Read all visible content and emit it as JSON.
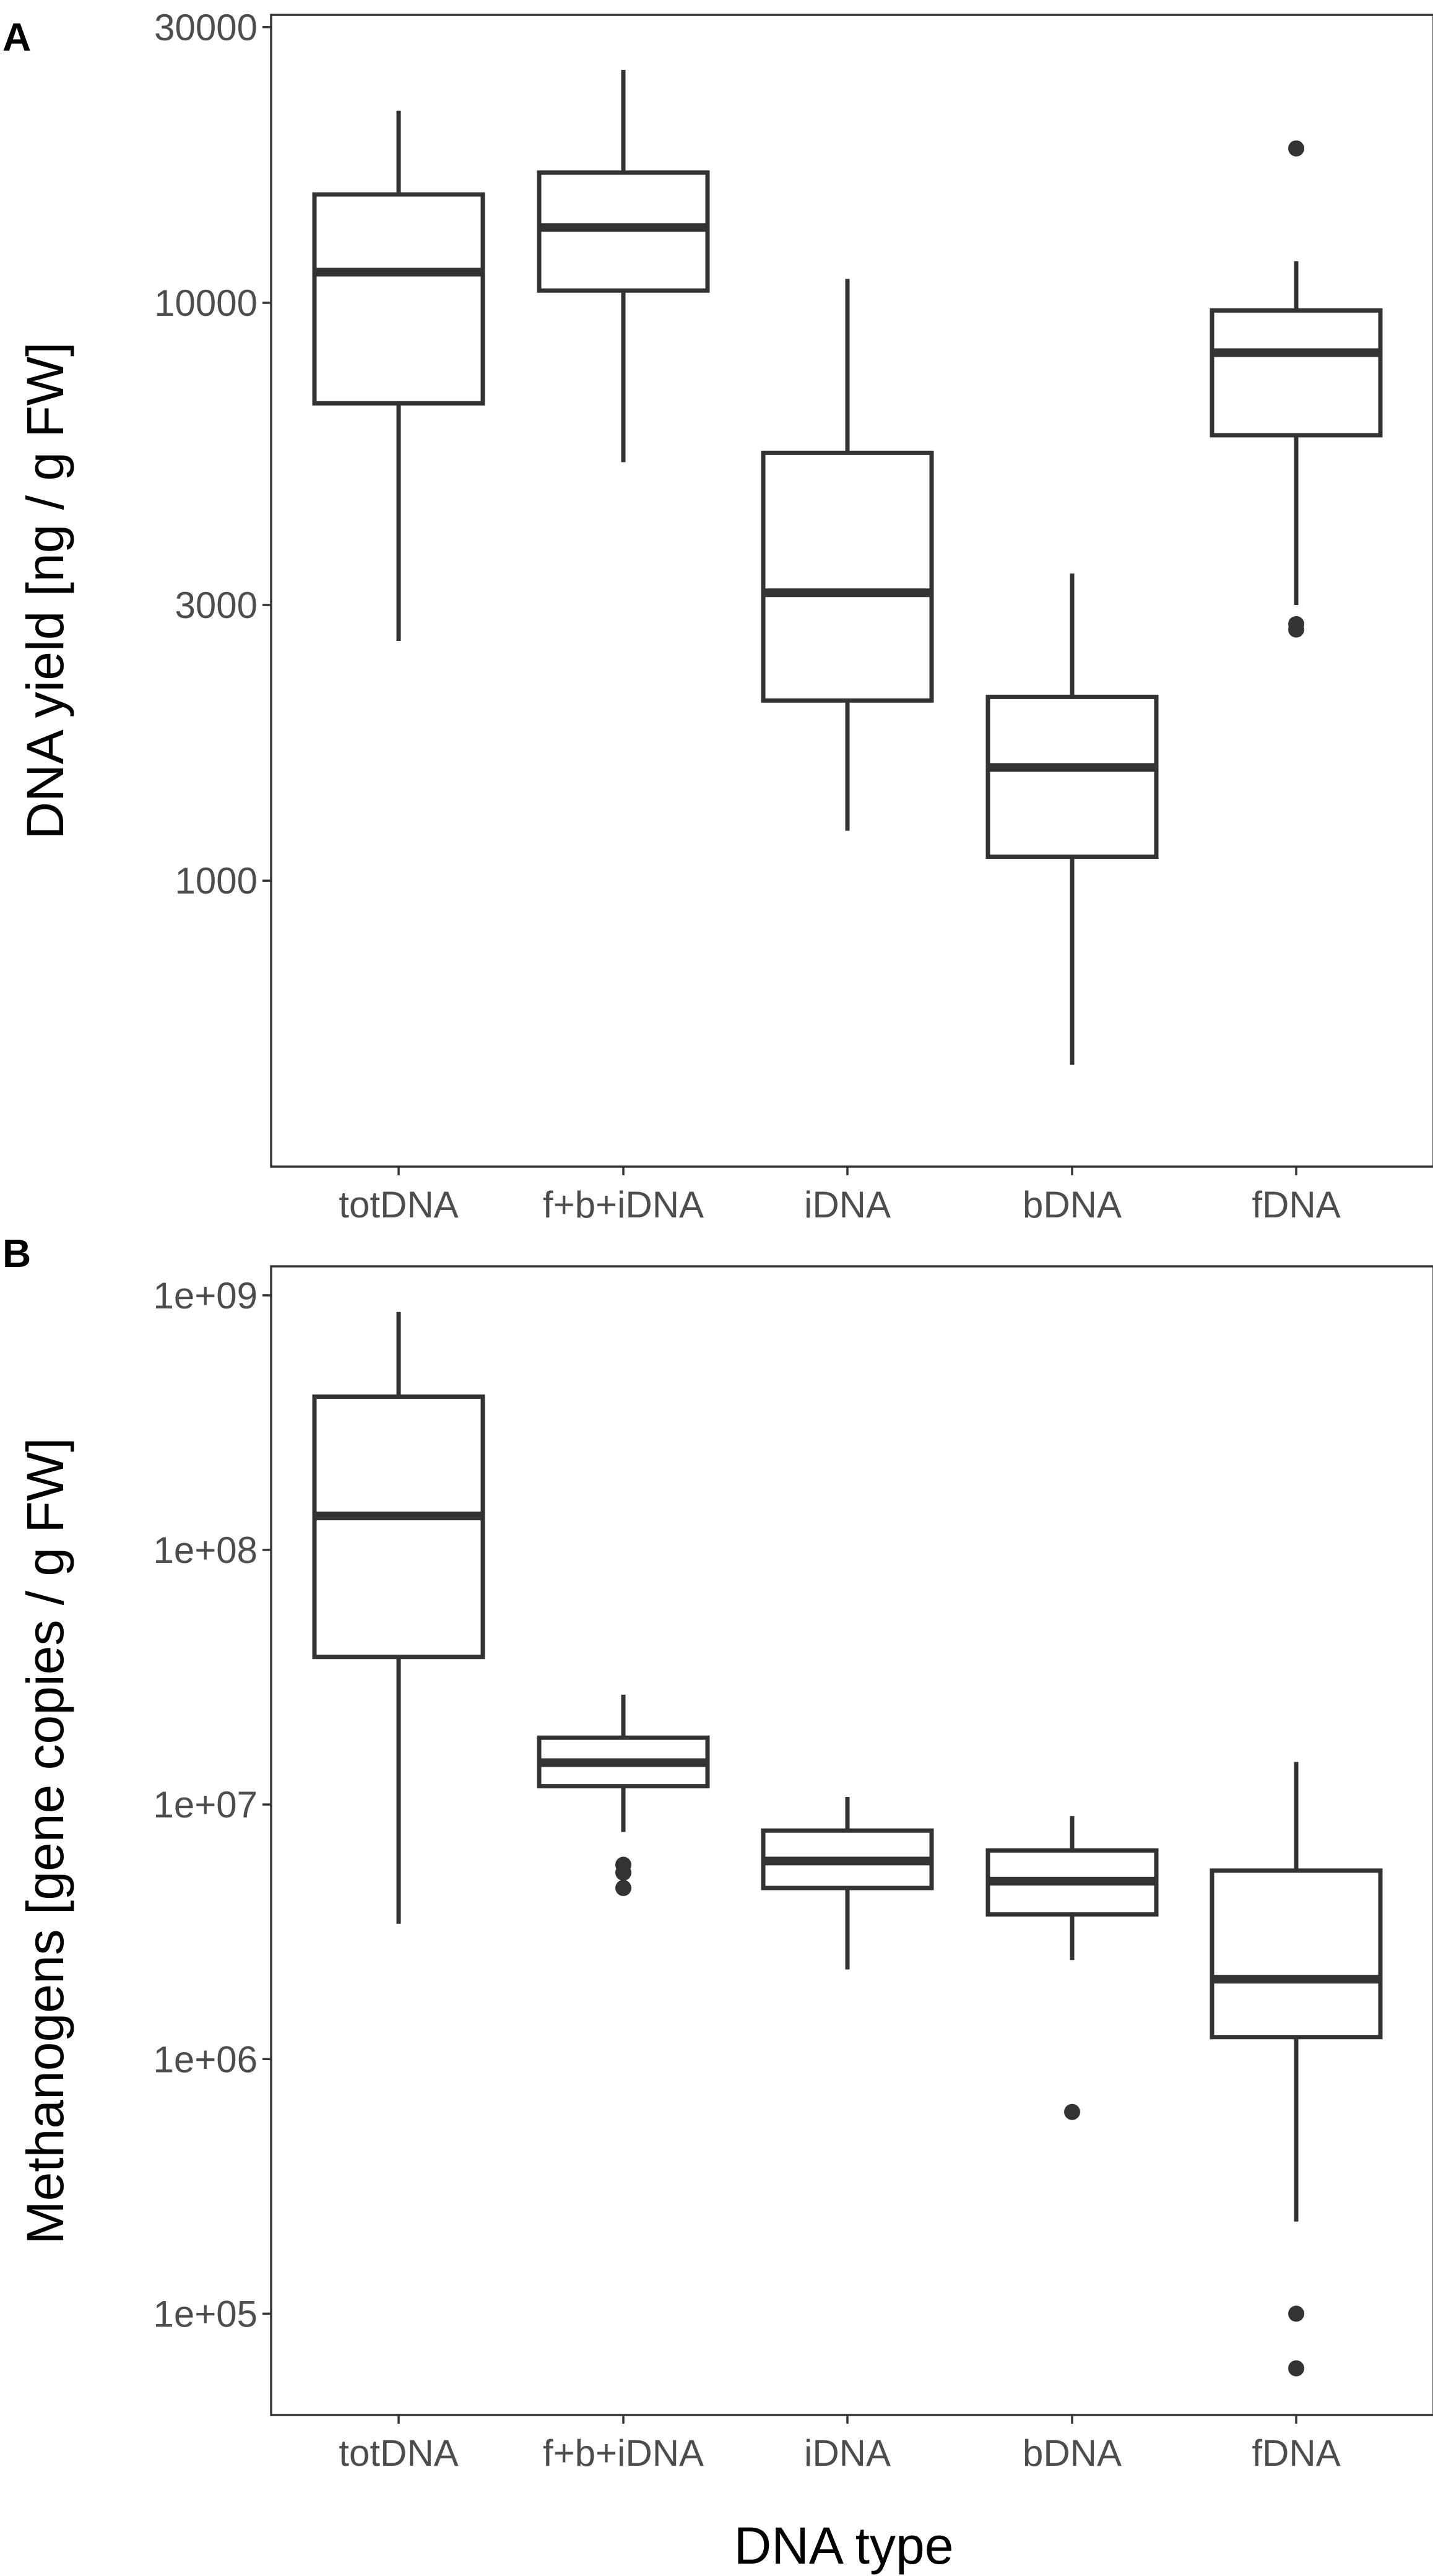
{
  "chart_data": [
    {
      "type": "boxplot",
      "panel": "A",
      "title": "",
      "xlabel": "",
      "ylabel": "DNA yield [ng / g FW]",
      "yscale": "log10",
      "ylim": [
        320,
        31500
      ],
      "yticks": [
        1000,
        3000,
        10000,
        30000
      ],
      "ytick_labels": [
        "1000",
        "3000",
        "10000",
        "30000"
      ],
      "categories": [
        "totDNA",
        "f+b+iDNA",
        "iDNA",
        "bDNA",
        "fDNA"
      ],
      "boxes": [
        {
          "category": "totDNA",
          "whisker_low": 2600,
          "q1": 6700,
          "median": 11300,
          "q3": 15400,
          "whisker_high": 21500,
          "outliers": []
        },
        {
          "category": "f+b+iDNA",
          "whisker_low": 5300,
          "q1": 10500,
          "median": 13500,
          "q3": 16800,
          "whisker_high": 25300,
          "outliers": []
        },
        {
          "category": "iDNA",
          "whisker_low": 1220,
          "q1": 2050,
          "median": 3150,
          "q3": 5500,
          "whisker_high": 11000,
          "outliers": []
        },
        {
          "category": "bDNA",
          "whisker_low": 480,
          "q1": 1100,
          "median": 1570,
          "q3": 2080,
          "whisker_high": 3400,
          "outliers": []
        },
        {
          "category": "fDNA",
          "whisker_low": 3000,
          "q1": 5900,
          "median": 8200,
          "q3": 9700,
          "whisker_high": 11800,
          "outliers": [
            2720,
            2780,
            18500
          ]
        }
      ]
    },
    {
      "type": "boxplot",
      "panel": "B",
      "title": "",
      "xlabel": "DNA type",
      "ylabel": "Methanogens [gene copies / g FW]",
      "yscale": "log10",
      "ylim": [
        40000,
        1300000000
      ],
      "yticks": [
        100000,
        1000000,
        10000000,
        100000000,
        1000000000
      ],
      "ytick_labels": [
        "1e+05",
        "1e+06",
        "1e+07",
        "1e+08",
        "1e+09"
      ],
      "categories": [
        "totDNA",
        "f+b+iDNA",
        "iDNA",
        "bDNA",
        "fDNA"
      ],
      "boxes": [
        {
          "category": "totDNA",
          "whisker_low": 3400000,
          "q1": 38000000,
          "median": 136000000,
          "q3": 400000000,
          "whisker_high": 860000000,
          "outliers": []
        },
        {
          "category": "f+b+iDNA",
          "whisker_low": 7800000,
          "q1": 11800000,
          "median": 14600000,
          "q3": 18300000,
          "whisker_high": 27000000,
          "outliers": [
            4700000,
            5400000,
            5800000
          ]
        },
        {
          "category": "iDNA",
          "whisker_low": 2250000,
          "q1": 4700000,
          "median": 6000000,
          "q3": 7900000,
          "whisker_high": 10700000,
          "outliers": []
        },
        {
          "category": "bDNA",
          "whisker_low": 2450000,
          "q1": 3700000,
          "median": 5000000,
          "q3": 6600000,
          "whisker_high": 9000000,
          "outliers": [
            620000
          ]
        },
        {
          "category": "fDNA",
          "whisker_low": 230000,
          "q1": 1220000,
          "median": 2060000,
          "q3": 5500000,
          "whisker_high": 14700000,
          "outliers": [
            61000,
            100000
          ]
        }
      ]
    }
  ]
}
